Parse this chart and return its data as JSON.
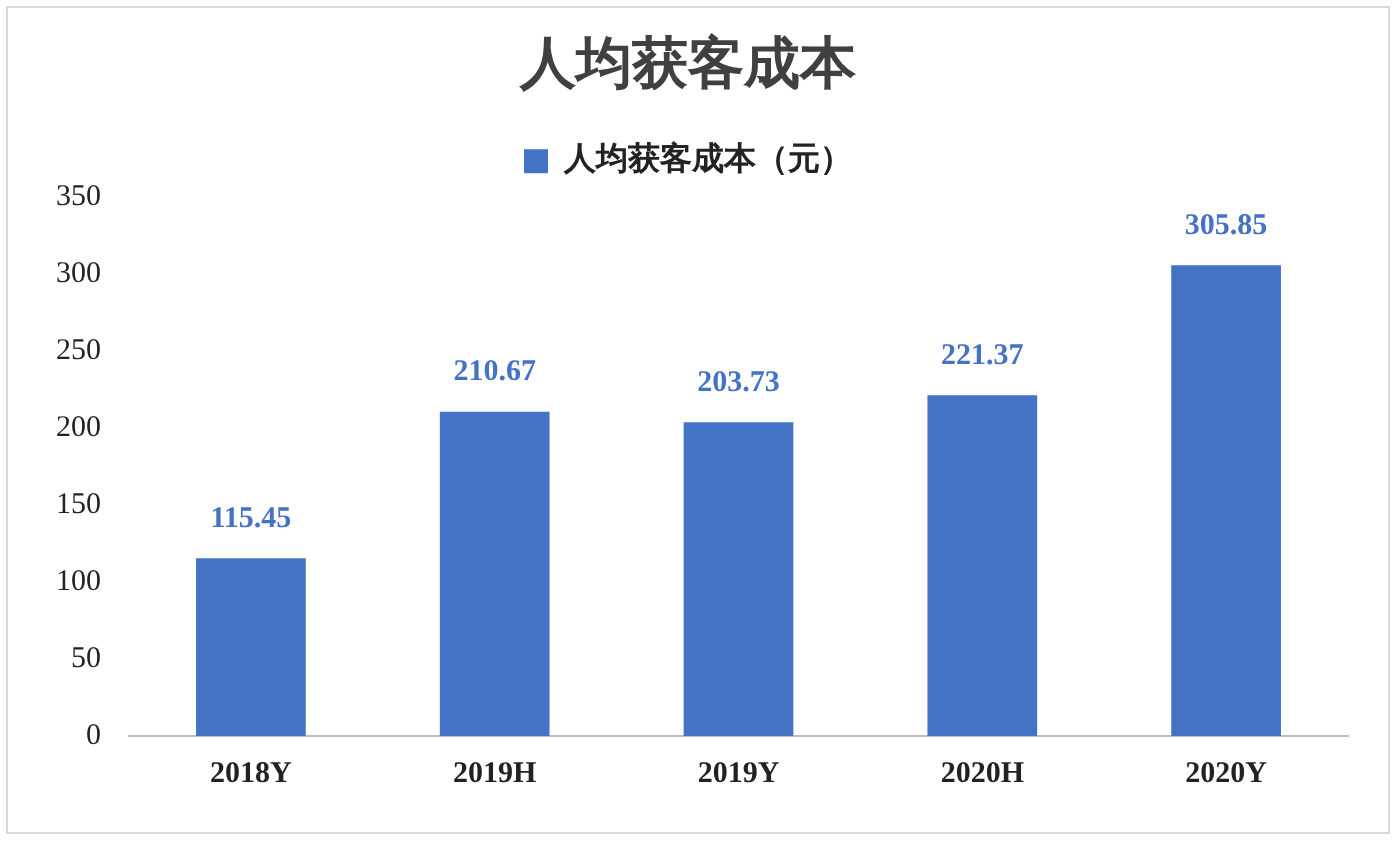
{
  "chart_data": {
    "type": "bar",
    "title": "人均获客成本",
    "categories": [
      "2018Y",
      "2019H",
      "2019Y",
      "2020H",
      "2020Y"
    ],
    "series": [
      {
        "name": "人均获客成本（元）",
        "color": "#4472c4",
        "values": [
          115.45,
          210.67,
          203.73,
          221.37,
          305.85
        ]
      }
    ],
    "ylim": [
      0,
      350
    ],
    "yticks": [
      0,
      50,
      100,
      150,
      200,
      250,
      300,
      350
    ],
    "grid": false,
    "legend": "top",
    "data_labels": true
  }
}
